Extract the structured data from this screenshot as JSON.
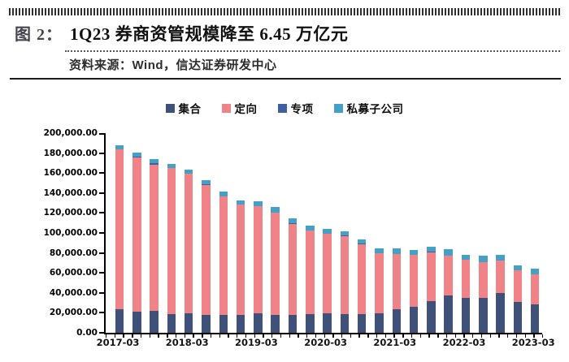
{
  "header": {
    "figure_label": "图 2：",
    "title": "1Q23 券商资管规模降至 6.45 万亿元",
    "source": "资料来源：Wind，信达证券研发中心"
  },
  "chart_data": {
    "type": "bar",
    "stacked": true,
    "unit": "亿元",
    "title": "1Q23券商资管规模降至6.45万亿元",
    "xlabel": "",
    "ylabel": "",
    "ylim": [
      0,
      200000
    ],
    "ytick_step": 20000,
    "ytick_format": "thousands_comma_two_decimals",
    "grid": false,
    "legend_position": "top",
    "categories": [
      "2017-03",
      "2017-06",
      "2017-09",
      "2017-12",
      "2018-03",
      "2018-06",
      "2018-09",
      "2018-12",
      "2019-03",
      "2019-06",
      "2019-09",
      "2019-12",
      "2020-03",
      "2020-06",
      "2020-09",
      "2020-12",
      "2021-03",
      "2021-06",
      "2021-09",
      "2021-12",
      "2022-03",
      "2022-06",
      "2022-09",
      "2022-12",
      "2023-03"
    ],
    "x_axis_labeled_ticks": [
      "2017-03",
      "2018-03",
      "2019-03",
      "2020-03",
      "2021-03",
      "2022-03",
      "2023-03"
    ],
    "series": [
      {
        "name": "集合",
        "color": "#3F5179",
        "values": [
          23800,
          21000,
          21600,
          18900,
          19500,
          18100,
          17600,
          18100,
          19500,
          18100,
          17600,
          18900,
          19500,
          19000,
          18400,
          19200,
          23800,
          26000,
          31700,
          37100,
          35200,
          34800,
          39800,
          31100,
          28500
        ]
      },
      {
        "name": "定向",
        "color": "#EF8388",
        "values": [
          159700,
          155000,
          147100,
          145900,
          139700,
          130100,
          119000,
          110000,
          107100,
          101900,
          91600,
          83600,
          79500,
          78100,
          70600,
          60400,
          55000,
          51700,
          49200,
          39800,
          37600,
          36100,
          32200,
          31600,
          29900
        ]
      },
      {
        "name": "专项",
        "color": "#3F5FA0",
        "values": [
          500,
          500,
          1600,
          600,
          500,
          400,
          400,
          300,
          300,
          300,
          200,
          200,
          200,
          200,
          200,
          100,
          100,
          100,
          100,
          100,
          100,
          100,
          100,
          100,
          100
        ]
      },
      {
        "name": "私募子公司",
        "color": "#44A0C6",
        "values": [
          4000,
          4000,
          4000,
          4100,
          3800,
          4100,
          4100,
          4000,
          4600,
          5400,
          4900,
          4600,
          4900,
          4600,
          4600,
          4900,
          5700,
          5100,
          5400,
          6700,
          5400,
          6000,
          6200,
          4700,
          6000
        ]
      }
    ],
    "totals": [
      188000,
      180500,
      174300,
      169500,
      163500,
      152700,
      141100,
      132400,
      131500,
      125700,
      114300,
      107300,
      104100,
      101900,
      93800,
      84600,
      84600,
      82900,
      86400,
      83700,
      78300,
      77000,
      78300,
      67500,
      64500
    ]
  }
}
